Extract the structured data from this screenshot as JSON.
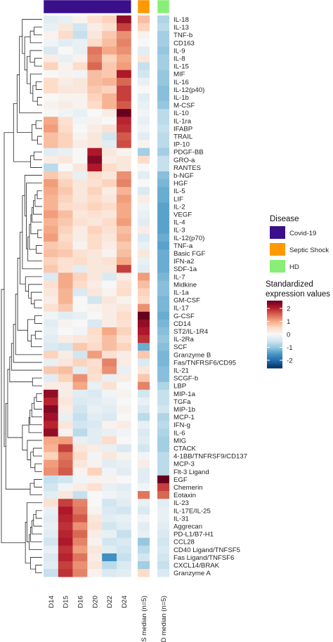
{
  "chart_data": {
    "type": "heatmap",
    "columns": [
      "D14",
      "D15",
      "D16",
      "D20",
      "D22",
      "D24"
    ],
    "annotation_columns": [
      "SS median (n=5)",
      "HD median (n=5)"
    ],
    "column_groups": [
      {
        "columns": [
          "D14",
          "D15",
          "D16",
          "D20",
          "D22",
          "D24"
        ],
        "disease": "Covid-19"
      },
      {
        "columns": [
          "SS median (n=5)"
        ],
        "disease": "Septic Shock"
      },
      {
        "columns": [
          "HD median (n=5)"
        ],
        "disease": "HD"
      }
    ],
    "rows": [
      "IL-18",
      "IL-13",
      "TNF-b",
      "CD163",
      "IL-9",
      "IL-8",
      "IL-15",
      "MIF",
      "IL-16",
      "IL-12(p40)",
      "IL-1b",
      "M-CSF",
      "IL-10",
      "IL-1ra",
      "IFABP",
      "TRAIL",
      "IP-10",
      "PDGF-BB",
      "GRO-a",
      "RANTES",
      "b-NGF",
      "HGF",
      "IL-5",
      "LIF",
      "IL-2",
      "VEGF",
      "IL-4",
      "IL-3",
      "IL-12(p70)",
      "TNF-a",
      "Basic FGF",
      "IFN-a2",
      "SDF-1a",
      "IL-7",
      "Midkine",
      "IL-1a",
      "GM-CSF",
      "IL-17",
      "G-CSF",
      "CD14",
      "ST2/IL-1R4",
      "IL-2Ra",
      "SCF",
      "Granzyme B",
      "Fas/TNFRSF6/CD95",
      "IL-21",
      "SCGF-b",
      "LBP",
      "MIP-1a",
      "TGFa",
      "MIP-1b",
      "MCP-1",
      "IFN-g",
      "IL-6",
      "MIG",
      "CTACK",
      "4-1BB/TNFRSF9/CD137",
      "MCP-3",
      "Flt-3 Ligand",
      "EGF",
      "Chemerin",
      "Eotaxin",
      "IL-23",
      "IL-17E/IL-25",
      "IL-31",
      "Aggrecan",
      "PD-L1/B7-H1",
      "CCL28",
      "CD40 Ligand/TNFSF5",
      "Fas Ligand/TNFSF6",
      "CXCL14/BRAK",
      "Granzyme A"
    ],
    "values": [
      [
        -0.3,
        -0.2,
        0.1,
        0.4,
        0.6,
        2.3,
        0.8,
        -0.8
      ],
      [
        -0.2,
        0.3,
        -0.5,
        0.2,
        0.4,
        1.8,
        0.6,
        -0.7
      ],
      [
        0.1,
        0.5,
        -0.6,
        0.3,
        0.7,
        1.2,
        0.1,
        -0.9
      ],
      [
        -0.1,
        -0.3,
        -0.2,
        0.5,
        0.8,
        1.3,
        0.0,
        -0.9
      ],
      [
        -0.4,
        0.0,
        -0.2,
        1.4,
        1.0,
        1.2,
        -0.3,
        -1.0
      ],
      [
        0.2,
        -0.2,
        0.1,
        1.3,
        0.6,
        1.0,
        0.3,
        -0.9
      ],
      [
        0.6,
        0.1,
        0.5,
        1.5,
        0.7,
        1.1,
        -0.6,
        -0.9
      ],
      [
        0.0,
        0.1,
        -0.1,
        0.8,
        0.7,
        2.1,
        -0.5,
        -1.0
      ],
      [
        0.5,
        0.2,
        0.3,
        0.8,
        0.9,
        1.5,
        -0.2,
        -1.0
      ],
      [
        0.5,
        0.3,
        0.3,
        0.7,
        0.6,
        1.8,
        0.0,
        -1.1
      ],
      [
        0.0,
        0.1,
        0.1,
        0.6,
        0.9,
        1.8,
        -0.3,
        -1.1
      ],
      [
        0.1,
        0.2,
        0.1,
        0.5,
        0.9,
        1.6,
        -0.2,
        -1.0
      ],
      [
        0.0,
        -0.1,
        -0.2,
        0.0,
        0.2,
        2.6,
        -0.1,
        -0.7
      ],
      [
        1.0,
        0.4,
        -0.1,
        0.1,
        0.0,
        2.0,
        -0.2,
        -0.7
      ],
      [
        1.1,
        0.5,
        0.0,
        0.2,
        0.4,
        1.9,
        -0.1,
        -0.6
      ],
      [
        0.8,
        0.6,
        0.1,
        0.3,
        -0.5,
        1.6,
        -0.3,
        -0.7
      ],
      [
        0.8,
        0.6,
        0.2,
        0.3,
        -0.3,
        1.7,
        0.1,
        -0.7
      ],
      [
        -0.3,
        -0.2,
        0.0,
        2.1,
        0.3,
        0.1,
        -0.9,
        -0.9
      ],
      [
        0.2,
        0.3,
        0.0,
        2.4,
        0.2,
        0.3,
        0.5,
        -0.6
      ],
      [
        -0.7,
        0.0,
        0.3,
        2.1,
        0.5,
        0.3,
        0.0,
        -0.6
      ],
      [
        0.7,
        0.4,
        -0.2,
        0.5,
        0.3,
        1.2,
        -0.3,
        -1.1
      ],
      [
        1.1,
        0.6,
        0.3,
        0.4,
        0.6,
        1.3,
        0.0,
        -1.2
      ],
      [
        1.0,
        0.7,
        0.3,
        0.6,
        0.2,
        0.9,
        -0.4,
        -1.3
      ],
      [
        0.9,
        0.6,
        0.3,
        0.5,
        0.3,
        1.1,
        0.2,
        -1.3
      ],
      [
        0.9,
        0.5,
        0.4,
        0.6,
        0.5,
        1.0,
        -0.1,
        -1.4
      ],
      [
        1.1,
        0.8,
        0.3,
        0.4,
        0.3,
        1.0,
        -0.2,
        -1.4
      ],
      [
        0.9,
        0.7,
        0.4,
        0.3,
        0.5,
        1.1,
        -0.3,
        -1.4
      ],
      [
        1.0,
        0.6,
        0.2,
        0.6,
        0.4,
        0.8,
        0.2,
        -1.4
      ],
      [
        1.1,
        0.5,
        0.2,
        0.5,
        0.3,
        0.9,
        -0.4,
        -1.3
      ],
      [
        0.7,
        0.6,
        0.1,
        0.5,
        0.2,
        0.7,
        -0.2,
        -1.4
      ],
      [
        0.8,
        0.7,
        0.4,
        0.3,
        0.1,
        0.8,
        0.3,
        -1.3
      ],
      [
        0.6,
        0.4,
        0.5,
        0.3,
        0.4,
        1.0,
        -0.2,
        -1.3
      ],
      [
        0.7,
        0.4,
        -0.3,
        0.3,
        0.3,
        1.8,
        -0.3,
        -1.3
      ],
      [
        -0.4,
        1.0,
        0.6,
        0.3,
        -0.4,
        0.2,
        1.1,
        -1.2
      ],
      [
        0.4,
        1.0,
        0.5,
        0.2,
        0.0,
        0.4,
        0.8,
        -1.1
      ],
      [
        0.3,
        0.9,
        -0.4,
        0.3,
        0.1,
        0.5,
        0.6,
        -1.1
      ],
      [
        0.2,
        0.9,
        0.0,
        -0.5,
        0.3,
        0.1,
        0.5,
        -1.2
      ],
      [
        0.4,
        0.7,
        0.0,
        0.1,
        0.2,
        0.3,
        1.2,
        -1.2
      ],
      [
        -0.1,
        -0.3,
        -0.2,
        0.0,
        0.2,
        0.5,
        2.6,
        -1.3
      ],
      [
        -0.3,
        0.1,
        0.0,
        -0.4,
        0.2,
        0.4,
        2.3,
        -1.2
      ],
      [
        -0.2,
        0.0,
        -0.1,
        0.5,
        1.0,
        0.6,
        2.1,
        -1.1
      ],
      [
        -0.3,
        0.2,
        0.3,
        0.4,
        0.8,
        0.4,
        1.9,
        -1.0
      ],
      [
        -0.4,
        -0.5,
        0.7,
        0.5,
        0.8,
        0.6,
        -1.3,
        -1.1
      ],
      [
        0.6,
        0.2,
        -0.5,
        1.1,
        0.4,
        0.2,
        0.7,
        -1.2
      ],
      [
        -0.2,
        0.3,
        0.6,
        0.4,
        1.3,
        0.2,
        -0.4,
        -1.2
      ],
      [
        0.7,
        0.8,
        -0.3,
        0.5,
        1.2,
        -0.2,
        0.3,
        -1.1
      ],
      [
        -0.3,
        0.6,
        1.2,
        0.4,
        -0.2,
        0.2,
        0.7,
        -1.1
      ],
      [
        0.2,
        0.2,
        1.0,
        -0.2,
        0.4,
        0.0,
        1.3,
        -0.8
      ],
      [
        2.3,
        0.2,
        -0.3,
        -0.4,
        -0.1,
        0.1,
        -0.5,
        -0.6
      ],
      [
        2.0,
        0.3,
        -0.4,
        -0.3,
        -0.2,
        0.0,
        -0.2,
        -0.6
      ],
      [
        2.4,
        0.2,
        -0.5,
        -0.2,
        -0.3,
        0.1,
        -0.4,
        -0.5
      ],
      [
        2.2,
        -0.2,
        -0.6,
        -0.3,
        -0.4,
        0.0,
        -0.7,
        -0.8
      ],
      [
        2.0,
        0.3,
        -0.5,
        -0.4,
        0.1,
        0.2,
        -0.2,
        -0.7
      ],
      [
        2.3,
        0.1,
        -0.7,
        -0.3,
        -0.2,
        -0.1,
        -0.4,
        -0.8
      ],
      [
        1.0,
        1.1,
        -0.2,
        -0.3,
        0.5,
        0.0,
        -0.3,
        -0.9
      ],
      [
        0.9,
        1.8,
        0.3,
        0.2,
        -0.2,
        -0.4,
        -0.5,
        -0.9
      ],
      [
        0.6,
        1.4,
        0.5,
        -0.1,
        0.3,
        0.1,
        -0.1,
        -0.7
      ],
      [
        1.1,
        1.5,
        0.3,
        0.1,
        -0.3,
        -0.2,
        0.2,
        -0.7
      ],
      [
        1.2,
        1.6,
        0.1,
        0.6,
        -0.1,
        -0.3,
        -0.3,
        -0.7
      ],
      [
        -0.6,
        -0.5,
        -0.1,
        0.1,
        0.1,
        0.0,
        -0.3,
        2.6
      ],
      [
        -0.5,
        -0.1,
        0.2,
        0.4,
        -0.2,
        -0.3,
        -0.1,
        1.8
      ],
      [
        -0.3,
        0.3,
        -0.6,
        0.0,
        -0.1,
        -0.2,
        1.4,
        1.5
      ],
      [
        0.4,
        1.8,
        1.3,
        0.0,
        -0.5,
        -0.3,
        -0.2,
        -0.3
      ],
      [
        -0.2,
        2.1,
        1.4,
        0.1,
        -0.4,
        -0.5,
        -0.4,
        -0.2
      ],
      [
        -0.3,
        2.0,
        1.6,
        0.3,
        -0.3,
        -0.2,
        -0.1,
        -0.2
      ],
      [
        -0.2,
        1.9,
        1.2,
        0.4,
        -0.5,
        -0.3,
        -0.3,
        -0.3
      ],
      [
        -0.3,
        2.0,
        1.5,
        0.2,
        -0.2,
        -0.6,
        -0.2,
        -0.4
      ],
      [
        -0.5,
        2.1,
        1.3,
        0.1,
        -0.5,
        -0.4,
        -1.0,
        -0.5
      ],
      [
        -0.2,
        1.9,
        1.1,
        0.3,
        -0.3,
        -0.5,
        -0.7,
        -0.4
      ],
      [
        -0.4,
        2.0,
        1.4,
        0.2,
        -1.6,
        -0.6,
        -0.5,
        -0.5
      ],
      [
        -0.3,
        1.8,
        1.2,
        0.3,
        -0.7,
        -0.4,
        -0.9,
        -0.6
      ],
      [
        -0.6,
        1.9,
        1.3,
        0.1,
        -0.4,
        -0.3,
        0.5,
        -0.4
      ]
    ],
    "legend": {
      "disease_title": "Disease",
      "disease_items": [
        {
          "label": "Covid-19",
          "color": "#3a0f8a"
        },
        {
          "label": "Septic Shock",
          "color": "#ff9900"
        },
        {
          "label": "HD",
          "color": "#88ee77"
        }
      ],
      "scale_title_lines": [
        "Standardized",
        "expression values"
      ],
      "scale_ticks": [
        2,
        1,
        0,
        -1,
        -2
      ],
      "scale_tick_labels": [
        "2",
        "1",
        "0",
        "-1",
        "-2"
      ],
      "scale_range": [
        -2.6,
        2.6
      ]
    },
    "colorscale": [
      "#053061",
      "#2166ac",
      "#4393c3",
      "#92c5de",
      "#d1e5f0",
      "#f7f7f7",
      "#fddbc7",
      "#f4a582",
      "#d6604d",
      "#b2182b",
      "#67001f"
    ],
    "grid": false
  }
}
